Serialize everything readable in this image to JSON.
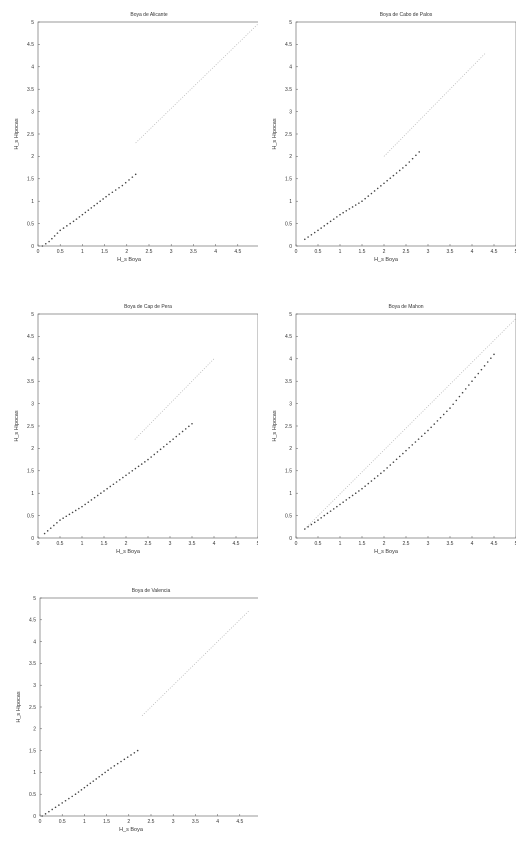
{
  "chart_data": [
    {
      "type": "scatter",
      "title": "Boya de Alicante",
      "xlabel": "H_s Boya",
      "ylabel": "H_s Hipocas",
      "xlim": [
        0,
        5
      ],
      "ylim": [
        0,
        5
      ],
      "xticks": [
        "0",
        "0.5",
        "1",
        "1.5",
        "2",
        "2.5",
        "3",
        "3.5",
        "4",
        "4.5",
        "5"
      ],
      "yticks": [
        "0",
        "0.5",
        "1",
        "1.5",
        "2",
        "2.5",
        "3",
        "3.5",
        "4",
        "4.5",
        "5"
      ],
      "reference_line": {
        "x": [
          2.2,
          5.0
        ],
        "y": [
          2.3,
          5.0
        ],
        "style": "dotted",
        "color": "#b8b8b8"
      },
      "series": [
        {
          "x": [
            0.1,
            0.25,
            0.5,
            0.8,
            1.2,
            1.6,
            1.9,
            2.2
          ],
          "y": [
            0.0,
            0.1,
            0.35,
            0.55,
            0.85,
            1.15,
            1.35,
            1.6
          ],
          "color": "#444444"
        }
      ]
    },
    {
      "type": "scatter",
      "title": "Boya de Cabo de Palos",
      "xlabel": "H_s Boya",
      "ylabel": "H_s Hipocas",
      "xlim": [
        0,
        5
      ],
      "ylim": [
        0,
        5
      ],
      "xticks": [
        "0",
        "0.5",
        "1",
        "1.5",
        "2",
        "2.5",
        "3",
        "3.5",
        "4",
        "4.5",
        "5"
      ],
      "yticks": [
        "0",
        "0.5",
        "1",
        "1.5",
        "2",
        "2.5",
        "3",
        "3.5",
        "4",
        "4.5",
        "5"
      ],
      "reference_line": {
        "x": [
          2.0,
          4.3
        ],
        "y": [
          2.0,
          4.3
        ],
        "style": "dotted",
        "color": "#b8b8b8"
      },
      "series": [
        {
          "x": [
            0.2,
            0.5,
            1.0,
            1.5,
            2.0,
            2.5,
            2.8
          ],
          "y": [
            0.15,
            0.35,
            0.7,
            1.0,
            1.4,
            1.8,
            2.1
          ],
          "color": "#444444"
        }
      ]
    },
    {
      "type": "scatter",
      "title": "Boya de Cap de Pera",
      "xlabel": "H_s Boya",
      "ylabel": "H_s Hipocas",
      "xlim": [
        0,
        5
      ],
      "ylim": [
        0,
        5
      ],
      "xticks": [
        "0",
        "0.5",
        "1",
        "1.5",
        "2",
        "2.5",
        "3",
        "3.5",
        "4",
        "4.5",
        "5"
      ],
      "yticks": [
        "0",
        "0.5",
        "1",
        "1.5",
        "2",
        "2.5",
        "3",
        "3.5",
        "4",
        "4.5",
        "5"
      ],
      "reference_line": {
        "x": [
          2.2,
          4.0
        ],
        "y": [
          2.2,
          4.0
        ],
        "style": "dotted",
        "color": "#b8b8b8"
      },
      "series": [
        {
          "x": [
            0.15,
            0.5,
            1.0,
            1.5,
            2.0,
            2.5,
            3.0,
            3.5
          ],
          "y": [
            0.1,
            0.4,
            0.7,
            1.05,
            1.4,
            1.75,
            2.15,
            2.55
          ],
          "color": "#444444"
        }
      ]
    },
    {
      "type": "scatter",
      "title": "Boya de Mahon",
      "xlabel": "H_s Boya",
      "ylabel": "H_s Hipocas",
      "xlim": [
        0,
        5
      ],
      "ylim": [
        0,
        5
      ],
      "xticks": [
        "0",
        "0.5",
        "1",
        "1.5",
        "2",
        "2.5",
        "3",
        "3.5",
        "4",
        "4.5",
        "5"
      ],
      "yticks": [
        "0",
        "0.5",
        "1",
        "1.5",
        "2",
        "2.5",
        "3",
        "3.5",
        "4",
        "4.5",
        "5"
      ],
      "reference_line": {
        "x": [
          0.2,
          5.0
        ],
        "y": [
          0.2,
          4.9
        ],
        "style": "dotted",
        "color": "#b8b8b8"
      },
      "series": [
        {
          "x": [
            0.2,
            0.5,
            1.0,
            1.5,
            2.0,
            2.5,
            3.0,
            3.5,
            4.0,
            4.5
          ],
          "y": [
            0.2,
            0.4,
            0.75,
            1.1,
            1.5,
            1.95,
            2.4,
            2.9,
            3.5,
            4.1
          ],
          "color": "#444444"
        }
      ]
    },
    {
      "type": "scatter",
      "title": "Boya de Valencia",
      "xlabel": "H_s Boya",
      "ylabel": "H_s Hipocas",
      "xlim": [
        0,
        5
      ],
      "ylim": [
        0,
        5
      ],
      "xticks": [
        "0",
        "0.5",
        "1",
        "1.5",
        "2",
        "2.5",
        "3",
        "3.5",
        "4",
        "4.5",
        "5"
      ],
      "yticks": [
        "0",
        "0.5",
        "1",
        "1.5",
        "2",
        "2.5",
        "3",
        "3.5",
        "4",
        "4.5",
        "5"
      ],
      "reference_line": {
        "x": [
          2.3,
          4.7
        ],
        "y": [
          2.3,
          4.7
        ],
        "style": "dotted",
        "color": "#b8b8b8"
      },
      "series": [
        {
          "x": [
            0.05,
            0.2,
            0.5,
            0.8,
            1.2,
            1.6,
            1.9,
            2.2
          ],
          "y": [
            0.0,
            0.1,
            0.3,
            0.5,
            0.8,
            1.1,
            1.3,
            1.5
          ],
          "color": "#444444"
        }
      ]
    }
  ]
}
